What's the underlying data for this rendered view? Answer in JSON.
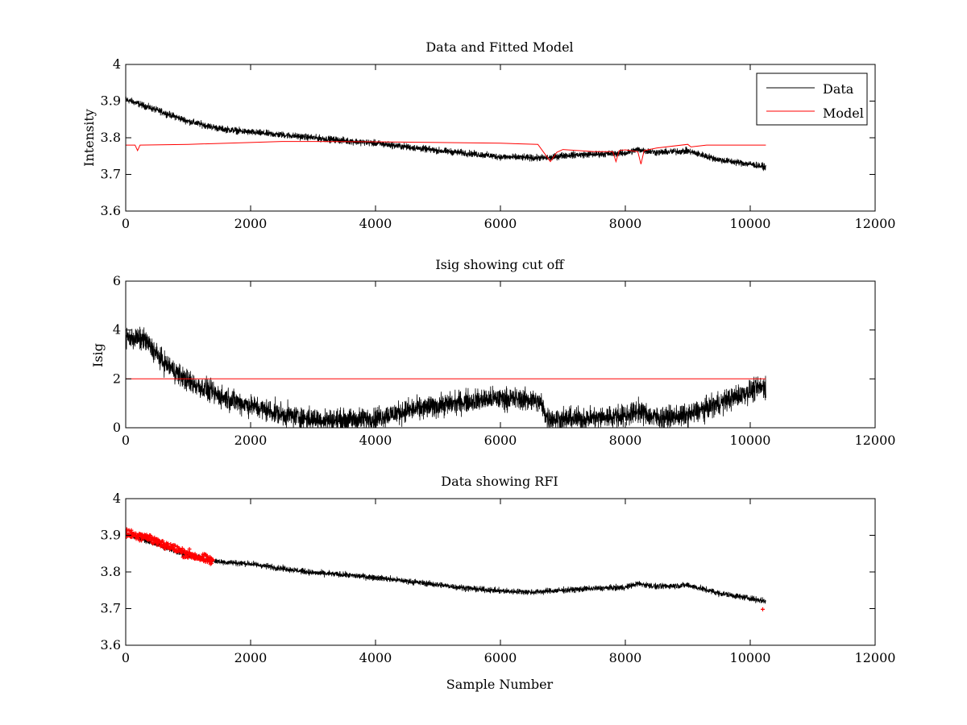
{
  "chart_data": [
    {
      "type": "line",
      "title": "Data and Fitted Model",
      "xlabel": "",
      "ylabel": "Intensity",
      "xlim": [
        0,
        12000
      ],
      "ylim": [
        3.6,
        4.0
      ],
      "xticks": [
        "0",
        "2000",
        "4000",
        "6000",
        "8000",
        "10000",
        "12000"
      ],
      "yticks": [
        "3.6",
        "3.7",
        "3.8",
        "3.9",
        "4"
      ],
      "grid": false,
      "legend": {
        "placement": "top-right",
        "entries": [
          "Data",
          "Model"
        ]
      },
      "series": [
        {
          "name": "Data",
          "color": "#000000",
          "x": [
            0,
            500,
            1000,
            1500,
            2000,
            2500,
            3000,
            3500,
            4000,
            4500,
            5000,
            5500,
            6000,
            6500,
            6800,
            7000,
            7500,
            8000,
            8200,
            8500,
            9000,
            9500,
            10000,
            10250
          ],
          "y": [
            3.905,
            3.875,
            3.845,
            3.825,
            3.815,
            3.808,
            3.8,
            3.792,
            3.785,
            3.775,
            3.765,
            3.757,
            3.748,
            3.745,
            3.745,
            3.752,
            3.755,
            3.758,
            3.768,
            3.76,
            3.764,
            3.74,
            3.728,
            3.72
          ],
          "noise": 0.009
        },
        {
          "name": "Model",
          "color": "#ff0000",
          "x": [
            0,
            150,
            190,
            230,
            1000,
            2000,
            2500,
            3000,
            4000,
            5000,
            6000,
            6600,
            6800,
            6900,
            7000,
            7500,
            7800,
            7850,
            7900,
            8000,
            8200,
            8250,
            8300,
            8500,
            9000,
            9050,
            9300,
            10250
          ],
          "y": [
            3.78,
            3.78,
            3.765,
            3.78,
            3.782,
            3.787,
            3.79,
            3.79,
            3.789,
            3.787,
            3.785,
            3.782,
            3.735,
            3.76,
            3.768,
            3.762,
            3.762,
            3.735,
            3.765,
            3.767,
            3.762,
            3.728,
            3.765,
            3.772,
            3.782,
            3.775,
            3.78,
            3.78
          ]
        }
      ]
    },
    {
      "type": "line",
      "title": "Isig showing cut off",
      "xlabel": "",
      "ylabel": "Isig",
      "xlim": [
        0,
        12000
      ],
      "ylim": [
        0,
        6
      ],
      "xticks": [
        "0",
        "2000",
        "4000",
        "6000",
        "8000",
        "10000",
        "12000"
      ],
      "yticks": [
        "0",
        "2",
        "4",
        "6"
      ],
      "grid": false,
      "series": [
        {
          "color": "#000000",
          "x": [
            0,
            300,
            600,
            1000,
            1500,
            2000,
            2500,
            3000,
            3500,
            4000,
            4500,
            5000,
            5500,
            6000,
            6500,
            6650,
            6750,
            7000,
            7500,
            8000,
            8200,
            8500,
            9000,
            9500,
            10000,
            10250
          ],
          "y": [
            3.7,
            3.6,
            2.7,
            1.9,
            1.3,
            0.9,
            0.55,
            0.35,
            0.3,
            0.4,
            0.7,
            0.9,
            1.1,
            1.2,
            1.15,
            1.0,
            0.4,
            0.35,
            0.4,
            0.5,
            0.7,
            0.4,
            0.5,
            1.0,
            1.5,
            1.7
          ],
          "noise": 0.45,
          "clip_min": 0
        },
        {
          "color": "#ff0000",
          "x": [
            0,
            10250
          ],
          "y": [
            2.0,
            2.0
          ]
        }
      ]
    },
    {
      "type": "line",
      "title": "Data showing RFI",
      "xlabel": "Sample Number",
      "ylabel": "",
      "xlim": [
        0,
        12000
      ],
      "ylim": [
        3.6,
        4.0
      ],
      "xticks": [
        "0",
        "2000",
        "4000",
        "6000",
        "8000",
        "10000",
        "12000"
      ],
      "yticks": [
        "3.6",
        "3.7",
        "3.8",
        "3.9",
        "4"
      ],
      "grid": false,
      "series": [
        {
          "color": "#000000",
          "x": [
            0,
            500,
            1000,
            1500,
            2000,
            2500,
            3000,
            3500,
            4000,
            4500,
            5000,
            5500,
            6000,
            6500,
            7000,
            7500,
            8000,
            8200,
            8500,
            9000,
            9500,
            10000,
            10250
          ],
          "y": [
            3.905,
            3.875,
            3.845,
            3.828,
            3.822,
            3.81,
            3.798,
            3.792,
            3.785,
            3.775,
            3.765,
            3.755,
            3.748,
            3.745,
            3.75,
            3.755,
            3.758,
            3.768,
            3.76,
            3.764,
            3.742,
            3.728,
            3.72
          ],
          "noise": 0.008
        },
        {
          "color": "#ff0000",
          "marker": "+",
          "x": [
            0,
            300,
            600,
            900,
            1200,
            1400
          ],
          "y": [
            3.905,
            3.898,
            3.876,
            3.855,
            3.838,
            3.83
          ],
          "noise": 0.012,
          "extra_points": [
            {
              "x": 10200,
              "y": 3.698
            }
          ]
        }
      ]
    }
  ]
}
